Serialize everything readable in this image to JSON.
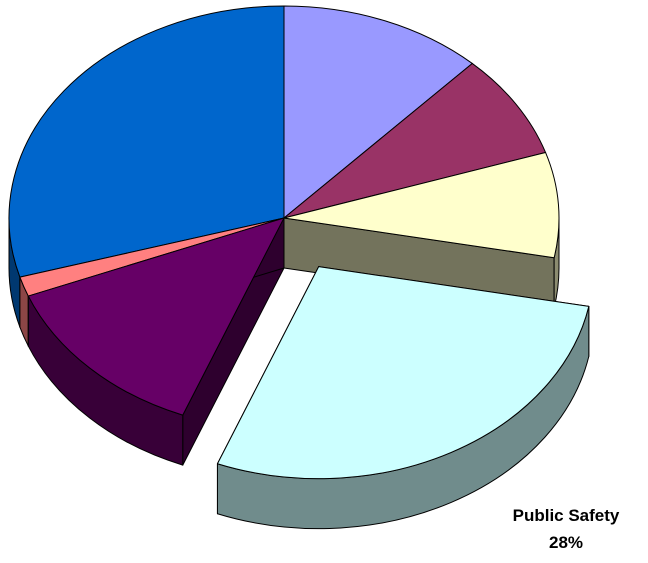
{
  "chart_data": {
    "type": "pie",
    "style": "3d-exploded",
    "start_angle_deg": 90,
    "direction": "clockwise",
    "exploded_slice": 3,
    "slices": [
      {
        "value": 12,
        "color": "#9999ff",
        "label": ""
      },
      {
        "value": 8,
        "color": "#993366",
        "label": ""
      },
      {
        "value": 8,
        "color": "#ffffcc",
        "label": ""
      },
      {
        "value": 28,
        "color": "#ccffff",
        "label": "Public Safety",
        "percent_label": "28%"
      },
      {
        "value": 13,
        "color": "#660066",
        "label": ""
      },
      {
        "value": 1.5,
        "color": "#ff8080",
        "label": ""
      },
      {
        "value": 29.5,
        "color": "#0066cc",
        "label": ""
      }
    ],
    "legend": "none"
  }
}
